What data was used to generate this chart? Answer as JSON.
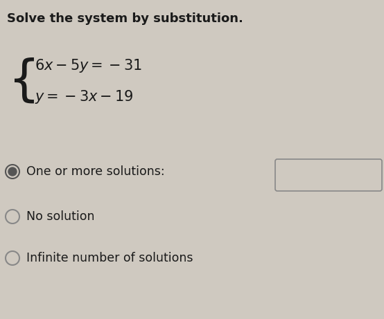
{
  "title": "Solve the system by substitution.",
  "eq1": "$6x - 5y = -31$",
  "eq2": "$y = -3x - 19$",
  "option1_label": "One or more solutions:",
  "option2_label": "No solution",
  "option3_label": "Infinite number of solutions",
  "bg_color": "#cfc9c0",
  "text_color": "#1a1a1a",
  "title_fontsize": 13,
  "eq_fontsize": 15,
  "option_fontsize": 12.5,
  "radio_selected_color": "#555555",
  "radio_selected_fill": "#888888",
  "radio_unselected_color": "#888888"
}
